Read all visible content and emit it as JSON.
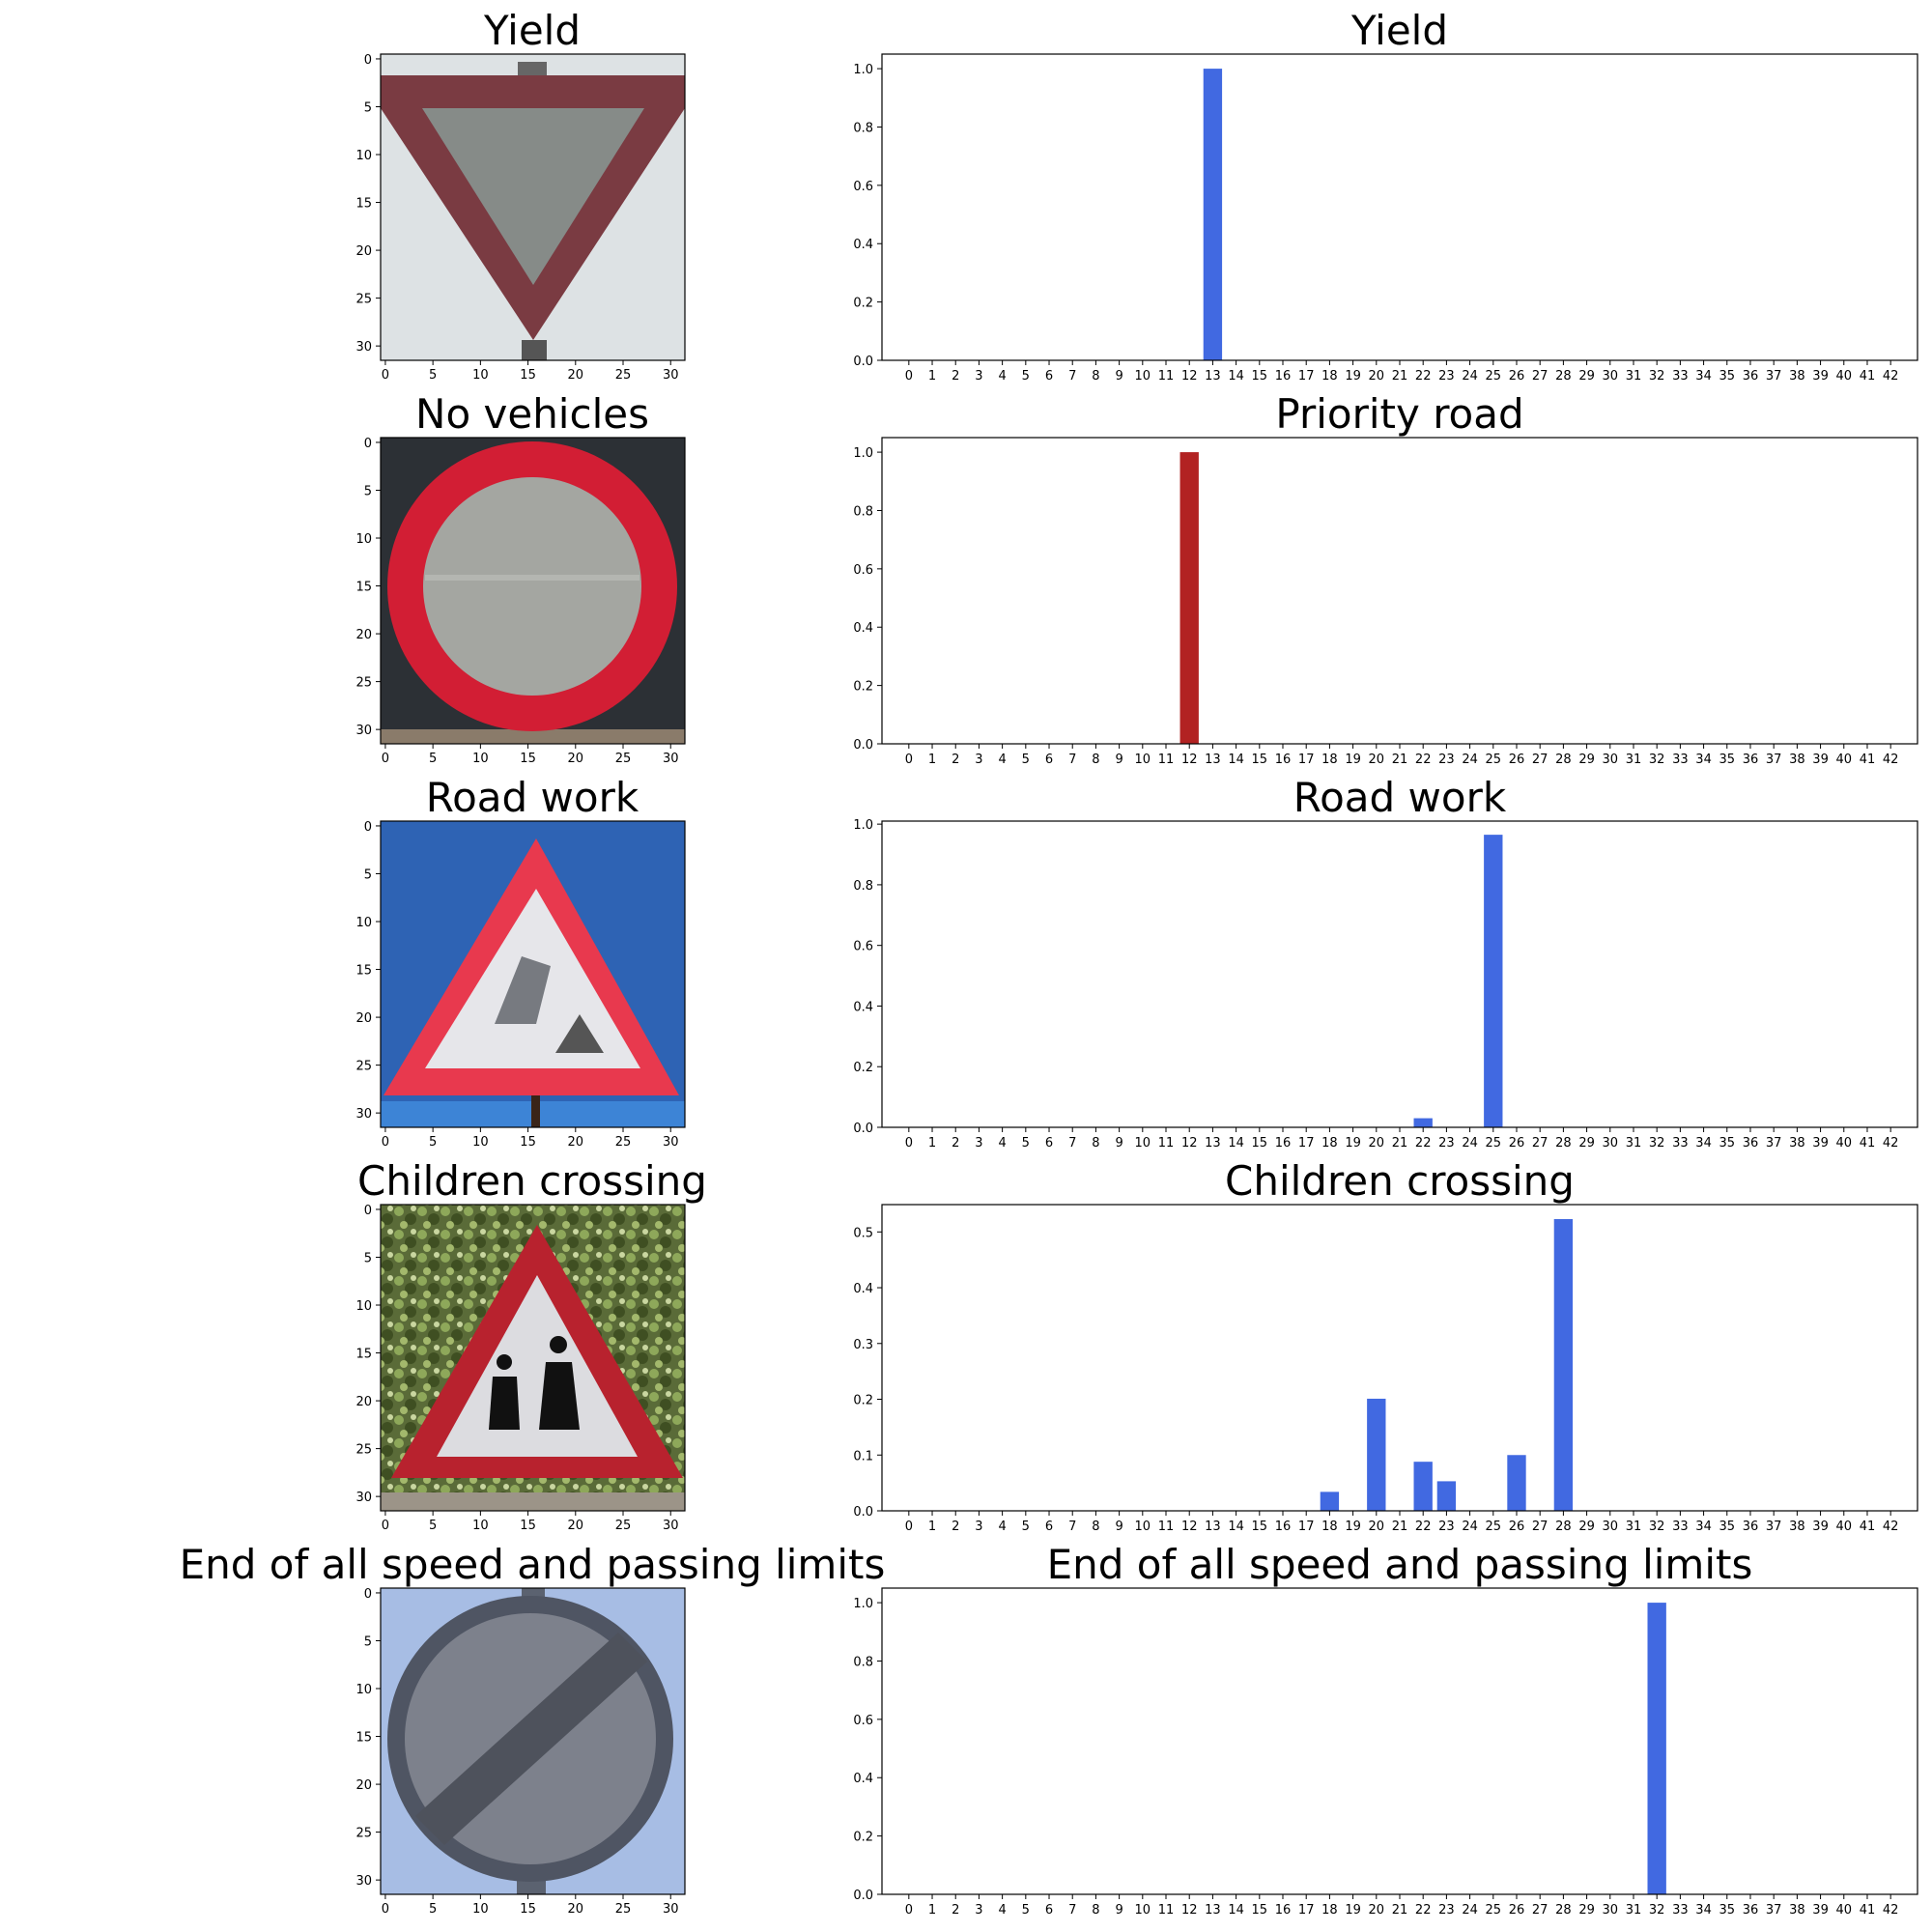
{
  "colors": {
    "bar_default": "#4169e1",
    "bar_wrong": "#b22222"
  },
  "chart_data": [
    {
      "type": "heatmap",
      "title": "Yield",
      "image": "yield-sign",
      "xticks": [
        "0",
        "5",
        "10",
        "15",
        "20",
        "25",
        "30"
      ],
      "yticks": [
        "0",
        "5",
        "10",
        "15",
        "20",
        "25",
        "30"
      ]
    },
    {
      "type": "bar",
      "title": "Yield",
      "bar_color": "#4169e1",
      "categories": [
        "0",
        "1",
        "2",
        "3",
        "4",
        "5",
        "6",
        "7",
        "8",
        "9",
        "10",
        "11",
        "12",
        "13",
        "14",
        "15",
        "16",
        "17",
        "18",
        "19",
        "20",
        "21",
        "22",
        "23",
        "24",
        "25",
        "26",
        "27",
        "28",
        "29",
        "30",
        "31",
        "32",
        "33",
        "34",
        "35",
        "36",
        "37",
        "38",
        "39",
        "40",
        "41",
        "42"
      ],
      "values": [
        0,
        0,
        0,
        0,
        0,
        0,
        0,
        0,
        0,
        0,
        0,
        0,
        0,
        1.0,
        0,
        0,
        0,
        0,
        0,
        0,
        0,
        0,
        0,
        0,
        0,
        0,
        0,
        0,
        0,
        0,
        0,
        0,
        0,
        0,
        0,
        0,
        0,
        0,
        0,
        0,
        0,
        0,
        0
      ],
      "yticks": [
        "0.0",
        "0.2",
        "0.4",
        "0.6",
        "0.8",
        "1.0"
      ],
      "ylim": [
        0,
        1.05
      ]
    },
    {
      "type": "heatmap",
      "title": "No vehicles",
      "image": "no-vehicles-sign",
      "xticks": [
        "0",
        "5",
        "10",
        "15",
        "20",
        "25",
        "30"
      ],
      "yticks": [
        "0",
        "5",
        "10",
        "15",
        "20",
        "25",
        "30"
      ]
    },
    {
      "type": "bar",
      "title": "Priority road",
      "bar_color": "#b22222",
      "categories": [
        "0",
        "1",
        "2",
        "3",
        "4",
        "5",
        "6",
        "7",
        "8",
        "9",
        "10",
        "11",
        "12",
        "13",
        "14",
        "15",
        "16",
        "17",
        "18",
        "19",
        "20",
        "21",
        "22",
        "23",
        "24",
        "25",
        "26",
        "27",
        "28",
        "29",
        "30",
        "31",
        "32",
        "33",
        "34",
        "35",
        "36",
        "37",
        "38",
        "39",
        "40",
        "41",
        "42"
      ],
      "values": [
        0,
        0,
        0,
        0,
        0,
        0,
        0,
        0,
        0,
        0,
        0,
        0,
        1.0,
        0,
        0,
        0,
        0,
        0,
        0,
        0,
        0,
        0,
        0,
        0,
        0,
        0,
        0,
        0,
        0,
        0,
        0,
        0,
        0,
        0,
        0,
        0,
        0,
        0,
        0,
        0,
        0,
        0,
        0
      ],
      "yticks": [
        "0.0",
        "0.2",
        "0.4",
        "0.6",
        "0.8",
        "1.0"
      ],
      "ylim": [
        0,
        1.05
      ]
    },
    {
      "type": "heatmap",
      "title": "Road work",
      "image": "road-work-sign",
      "xticks": [
        "0",
        "5",
        "10",
        "15",
        "20",
        "25",
        "30"
      ],
      "yticks": [
        "0",
        "5",
        "10",
        "15",
        "20",
        "25",
        "30"
      ]
    },
    {
      "type": "bar",
      "title": "Road work",
      "bar_color": "#4169e1",
      "categories": [
        "0",
        "1",
        "2",
        "3",
        "4",
        "5",
        "6",
        "7",
        "8",
        "9",
        "10",
        "11",
        "12",
        "13",
        "14",
        "15",
        "16",
        "17",
        "18",
        "19",
        "20",
        "21",
        "22",
        "23",
        "24",
        "25",
        "26",
        "27",
        "28",
        "29",
        "30",
        "31",
        "32",
        "33",
        "34",
        "35",
        "36",
        "37",
        "38",
        "39",
        "40",
        "41",
        "42"
      ],
      "values": [
        0,
        0,
        0,
        0,
        0,
        0,
        0,
        0,
        0,
        0,
        0,
        0,
        0,
        0,
        0,
        0,
        0,
        0,
        0,
        0,
        0,
        0,
        0.03,
        0,
        0,
        0.965,
        0,
        0,
        0,
        0,
        0,
        0,
        0,
        0,
        0,
        0,
        0,
        0,
        0,
        0,
        0,
        0,
        0
      ],
      "yticks": [
        "0.0",
        "0.2",
        "0.4",
        "0.6",
        "0.8",
        "1.0"
      ],
      "ylim": [
        0,
        1.01
      ]
    },
    {
      "type": "heatmap",
      "title": "Children crossing",
      "image": "children-crossing-sign",
      "xticks": [
        "0",
        "5",
        "10",
        "15",
        "20",
        "25",
        "30"
      ],
      "yticks": [
        "0",
        "5",
        "10",
        "15",
        "20",
        "25",
        "30"
      ]
    },
    {
      "type": "bar",
      "title": "Children crossing",
      "bar_color": "#4169e1",
      "categories": [
        "0",
        "1",
        "2",
        "3",
        "4",
        "5",
        "6",
        "7",
        "8",
        "9",
        "10",
        "11",
        "12",
        "13",
        "14",
        "15",
        "16",
        "17",
        "18",
        "19",
        "20",
        "21",
        "22",
        "23",
        "24",
        "25",
        "26",
        "27",
        "28",
        "29",
        "30",
        "31",
        "32",
        "33",
        "34",
        "35",
        "36",
        "37",
        "38",
        "39",
        "40",
        "41",
        "42"
      ],
      "values": [
        0,
        0,
        0,
        0,
        0,
        0,
        0,
        0,
        0,
        0,
        0,
        0,
        0,
        0,
        0,
        0,
        0,
        0,
        0.034,
        0,
        0.201,
        0,
        0.088,
        0.053,
        0,
        0,
        0.1,
        0,
        0.523,
        0,
        0,
        0,
        0,
        0,
        0,
        0,
        0,
        0,
        0,
        0,
        0,
        0,
        0
      ],
      "yticks": [
        "0.0",
        "0.1",
        "0.2",
        "0.3",
        "0.4",
        "0.5"
      ],
      "ylim": [
        0,
        0.549
      ]
    },
    {
      "type": "heatmap",
      "title": "End of all speed and passing limits",
      "image": "end-of-limits-sign",
      "xticks": [
        "0",
        "5",
        "10",
        "15",
        "20",
        "25",
        "30"
      ],
      "yticks": [
        "0",
        "5",
        "10",
        "15",
        "20",
        "25",
        "30"
      ]
    },
    {
      "type": "bar",
      "title": "End of all speed and passing limits",
      "bar_color": "#4169e1",
      "categories": [
        "0",
        "1",
        "2",
        "3",
        "4",
        "5",
        "6",
        "7",
        "8",
        "9",
        "10",
        "11",
        "12",
        "13",
        "14",
        "15",
        "16",
        "17",
        "18",
        "19",
        "20",
        "21",
        "22",
        "23",
        "24",
        "25",
        "26",
        "27",
        "28",
        "29",
        "30",
        "31",
        "32",
        "33",
        "34",
        "35",
        "36",
        "37",
        "38",
        "39",
        "40",
        "41",
        "42"
      ],
      "values": [
        0,
        0,
        0,
        0,
        0,
        0,
        0,
        0,
        0,
        0,
        0,
        0,
        0,
        0,
        0,
        0,
        0,
        0,
        0,
        0,
        0,
        0,
        0,
        0,
        0,
        0,
        0,
        0,
        0,
        0,
        0,
        0,
        1.0,
        0,
        0,
        0,
        0,
        0,
        0,
        0,
        0,
        0,
        0
      ],
      "yticks": [
        "0.0",
        "0.2",
        "0.4",
        "0.6",
        "0.8",
        "1.0"
      ],
      "ylim": [
        0,
        1.05
      ]
    }
  ]
}
